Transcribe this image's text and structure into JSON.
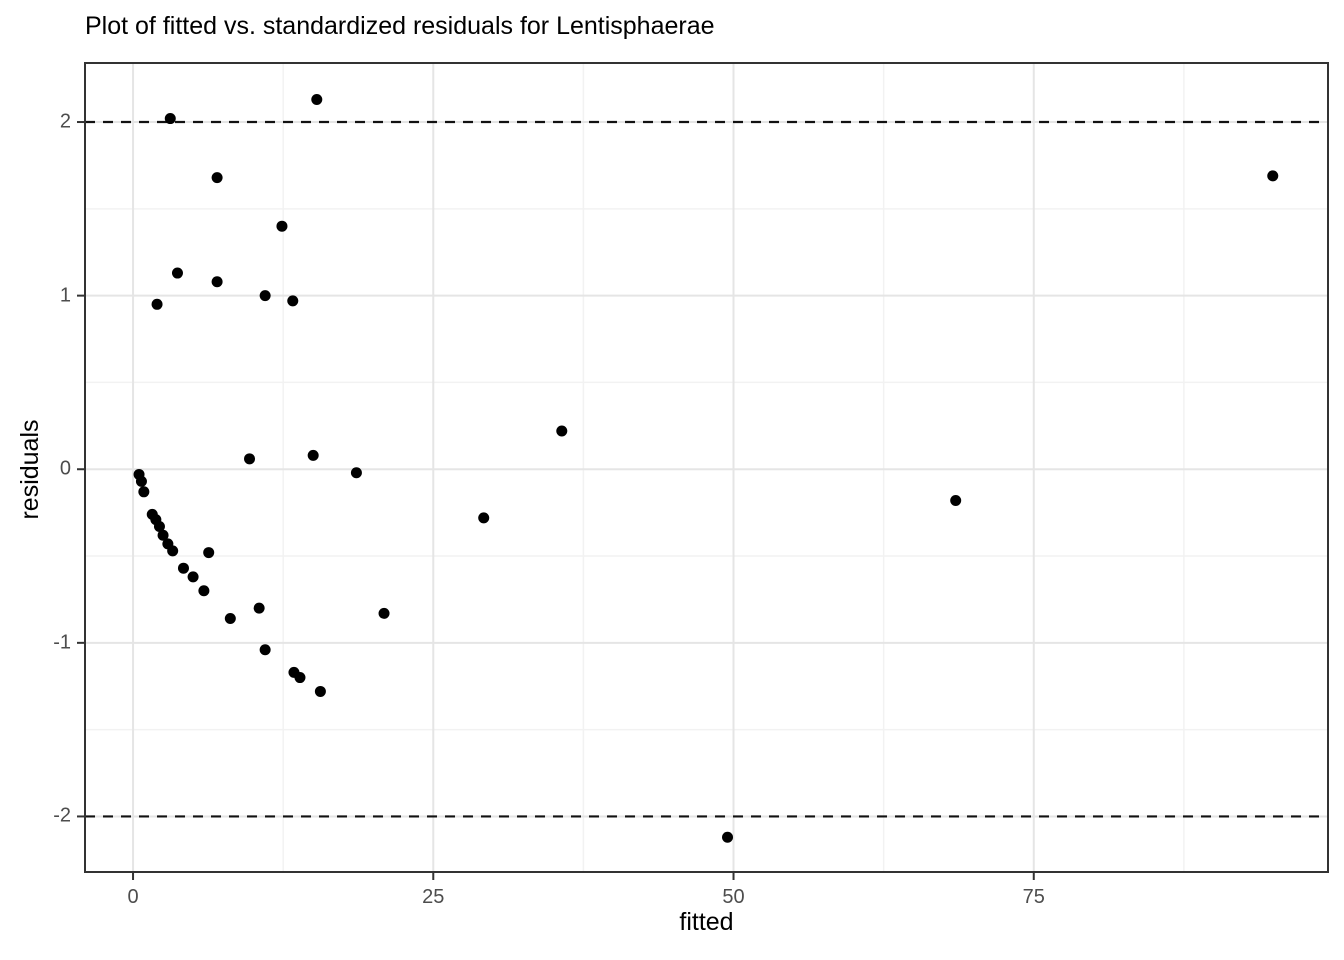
{
  "title": "Plot of fitted vs. standardized residuals for Lentisphaerae",
  "chart_data": {
    "type": "scatter",
    "title": "Plot of fitted vs. standardized residuals for Lentisphaerae",
    "xlabel": "fitted",
    "ylabel": "residuals",
    "xlim": [
      -4.0,
      99.5
    ],
    "ylim": [
      -2.32,
      2.34
    ],
    "x_major_ticks": [
      0,
      25,
      50,
      75
    ],
    "y_major_ticks": [
      -2,
      -1,
      0,
      1,
      2
    ],
    "x_minor_gridlines": [
      12.5,
      37.5,
      62.5,
      87.5
    ],
    "y_minor_gridlines": [
      -1.5,
      -0.5,
      0.5,
      1.5
    ],
    "grid": "on",
    "legend": "none",
    "reference_hlines": {
      "values": [
        2,
        -2
      ],
      "style": "dashed",
      "color": "#111111"
    },
    "points": [
      [
        3.1,
        2.02
      ],
      [
        15.3,
        2.13
      ],
      [
        7.0,
        1.68
      ],
      [
        12.4,
        1.4
      ],
      [
        3.7,
        1.13
      ],
      [
        7.0,
        1.08
      ],
      [
        11.0,
        1.0
      ],
      [
        13.3,
        0.97
      ],
      [
        2.0,
        0.95
      ],
      [
        9.7,
        0.06
      ],
      [
        15.0,
        0.08
      ],
      [
        18.6,
        -0.02
      ],
      [
        35.7,
        0.22
      ],
      [
        29.2,
        -0.28
      ],
      [
        20.9,
        -0.83
      ],
      [
        68.5,
        -0.18
      ],
      [
        94.9,
        1.69
      ],
      [
        49.5,
        -2.12
      ],
      [
        0.5,
        -0.03
      ],
      [
        0.7,
        -0.07
      ],
      [
        0.9,
        -0.13
      ],
      [
        1.6,
        -0.26
      ],
      [
        1.9,
        -0.29
      ],
      [
        2.2,
        -0.33
      ],
      [
        2.5,
        -0.38
      ],
      [
        2.9,
        -0.43
      ],
      [
        3.3,
        -0.47
      ],
      [
        6.3,
        -0.48
      ],
      [
        4.2,
        -0.57
      ],
      [
        5.0,
        -0.62
      ],
      [
        5.9,
        -0.7
      ],
      [
        10.5,
        -0.8
      ],
      [
        8.1,
        -0.86
      ],
      [
        11.0,
        -1.04
      ],
      [
        13.4,
        -1.17
      ],
      [
        13.9,
        -1.2
      ],
      [
        15.6,
        -1.28
      ]
    ],
    "colors": {
      "point": "#000000",
      "grid_major": "#e5e5e5",
      "grid_minor": "#f2f2f2",
      "panel_border": "#333333",
      "tick_mark": "#333333",
      "tick_label": "#4d4d4d",
      "text": "#000000",
      "background": "#ffffff"
    }
  }
}
